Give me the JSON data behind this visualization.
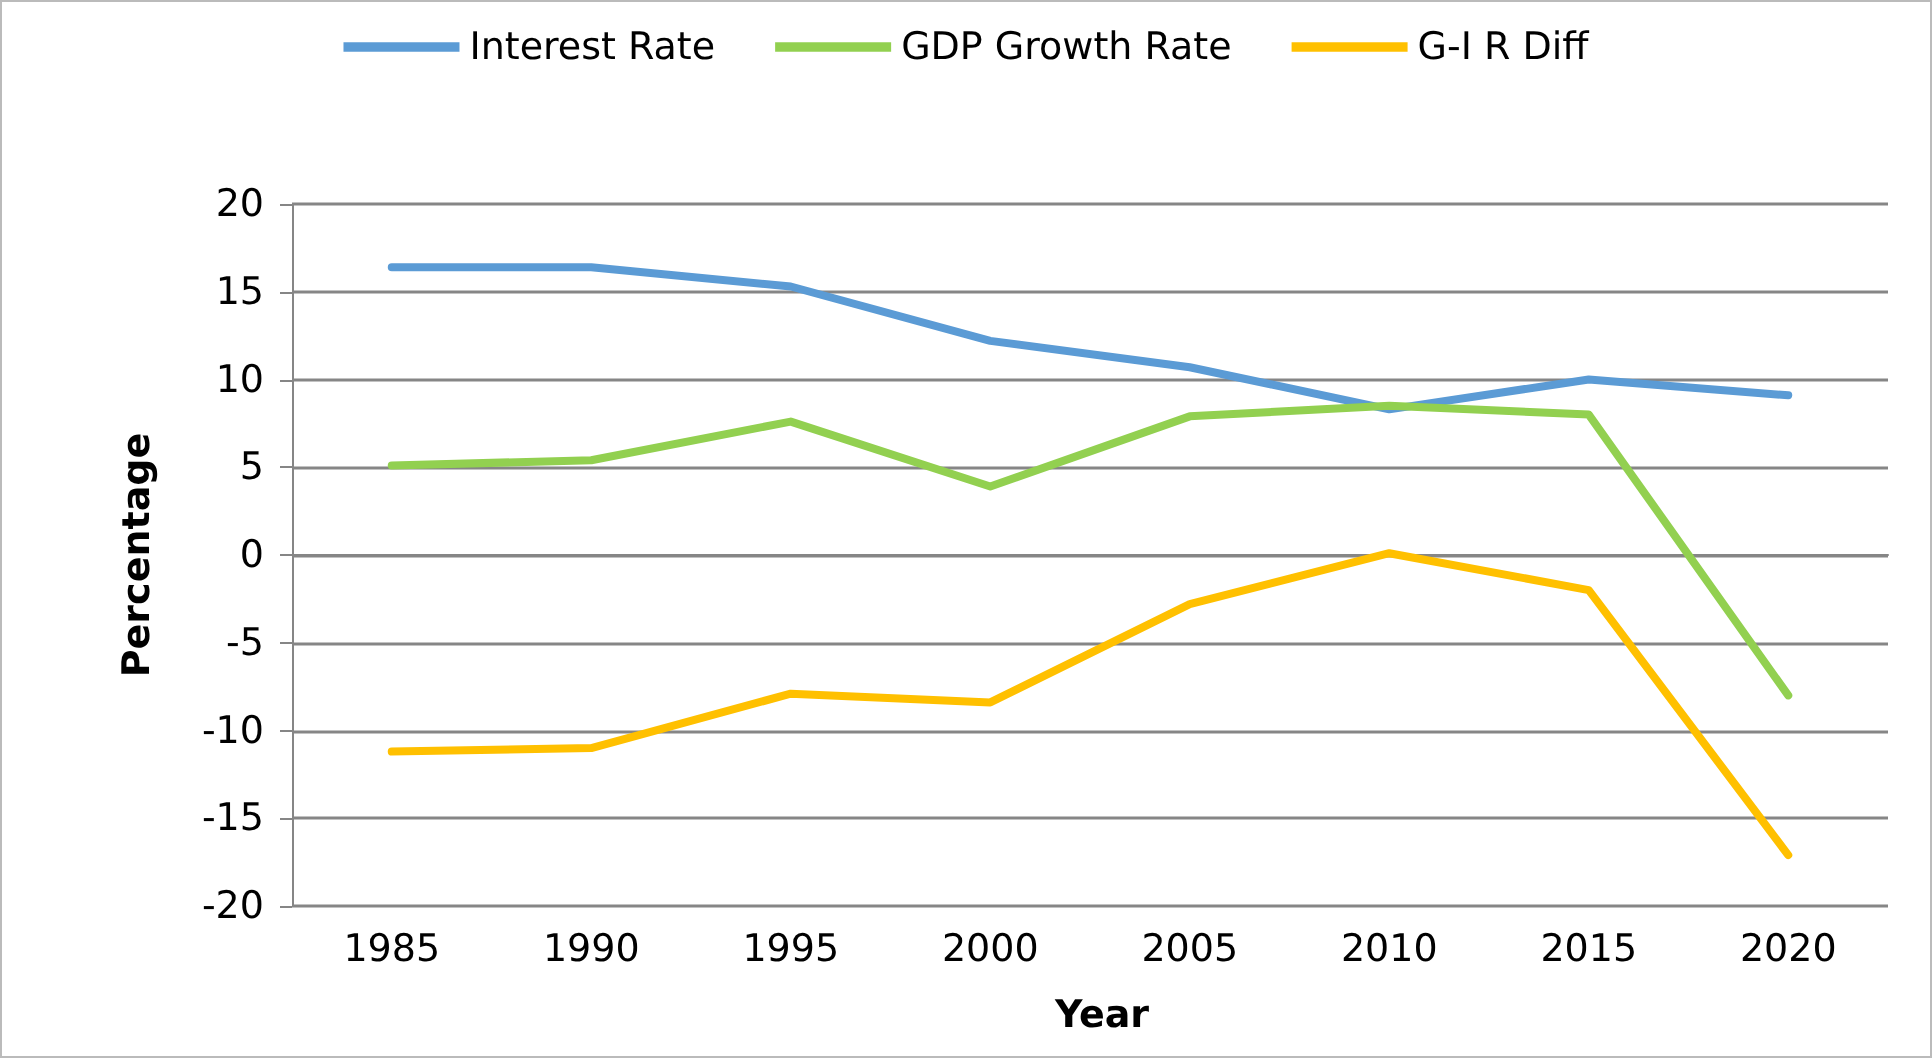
{
  "chart_data": {
    "type": "line",
    "xlabel": "Year",
    "ylabel": "Percentage",
    "categories": [
      "1985",
      "1990",
      "1995",
      "2000",
      "2005",
      "2010",
      "2015",
      "2020"
    ],
    "series": [
      {
        "name": "Interest Rate",
        "color": "#5b9bd5",
        "values": [
          16.4,
          16.4,
          15.3,
          12.2,
          10.7,
          8.3,
          10,
          9.1
        ]
      },
      {
        "name": "GDP Growth Rate",
        "color": "#92d050",
        "values": [
          5.1,
          5.4,
          7.6,
          3.9,
          7.9,
          8.5,
          8,
          -8
        ]
      },
      {
        "name": "G-I R Diff",
        "color": "#ffc000",
        "values": [
          -11.2,
          -11,
          -7.9,
          -8.4,
          -2.8,
          0.1,
          -2,
          -17.1
        ]
      }
    ],
    "ylim": [
      -20,
      20
    ],
    "yticks": [
      -20,
      -15,
      -10,
      -5,
      0,
      5,
      10,
      15,
      20
    ],
    "grid": "y",
    "legend": "top",
    "marker": "none",
    "line_style": "solid"
  }
}
